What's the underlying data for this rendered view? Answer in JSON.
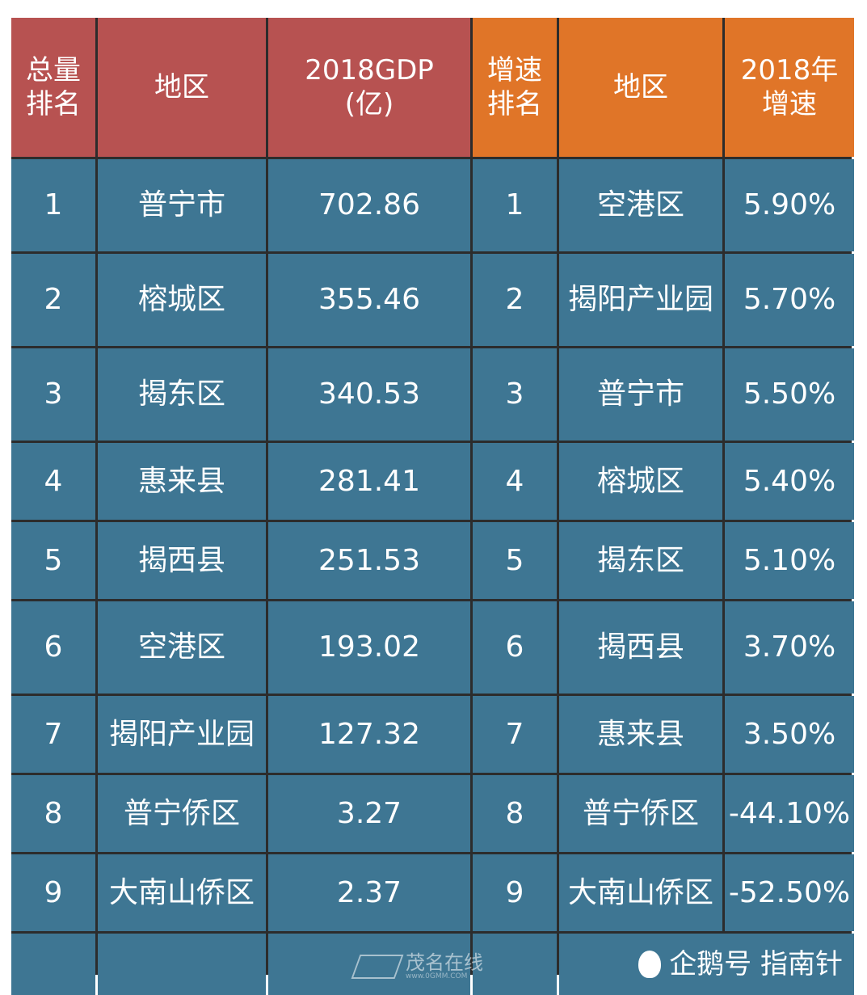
{
  "header": {
    "col1": [
      "总量",
      "排名"
    ],
    "col2": "地区",
    "col3": [
      "2018GDP",
      "(亿)"
    ],
    "col4": [
      "增速",
      "排名"
    ],
    "col5": "地区",
    "col6": [
      "2018年",
      "增速"
    ]
  },
  "rows": [
    [
      "1",
      "普宁市",
      "702.86",
      "1",
      "空港区",
      "5.90%"
    ],
    [
      "2",
      "榕城区",
      "355.46",
      "2",
      "揭阳产业园",
      "5.70%"
    ],
    [
      "3",
      "揭东区",
      "340.53",
      "3",
      "普宁市",
      "5.50%"
    ],
    [
      "4",
      "惠来县",
      "281.41",
      "4",
      "榕城区",
      "5.40%"
    ],
    [
      "5",
      "揭西县",
      "251.53",
      "5",
      "揭东区",
      "5.10%"
    ],
    [
      "6",
      "空港区",
      "193.02",
      "6",
      "揭西县",
      "3.70%"
    ],
    [
      "7",
      "揭阳产业园",
      "127.32",
      "7",
      "惠来县",
      "3.50%"
    ],
    [
      "8",
      "普宁侨区",
      "3.27",
      "8",
      "普宁侨区",
      "-44.10%"
    ],
    [
      "9",
      "大南山侨区",
      "2.37",
      "9",
      "大南山侨区",
      "-52.50%"
    ]
  ],
  "footer": {
    "source": "企鹅号 指南针",
    "penguin_icon": "penguin-icon"
  },
  "watermark": {
    "name": "茂名在线",
    "url": "www.0GMM.COM"
  },
  "colors": {
    "header_red": "#b75251",
    "header_orange": "#e07528",
    "body_blue": "#3e7693",
    "grid_line": "#2c2c2c"
  }
}
